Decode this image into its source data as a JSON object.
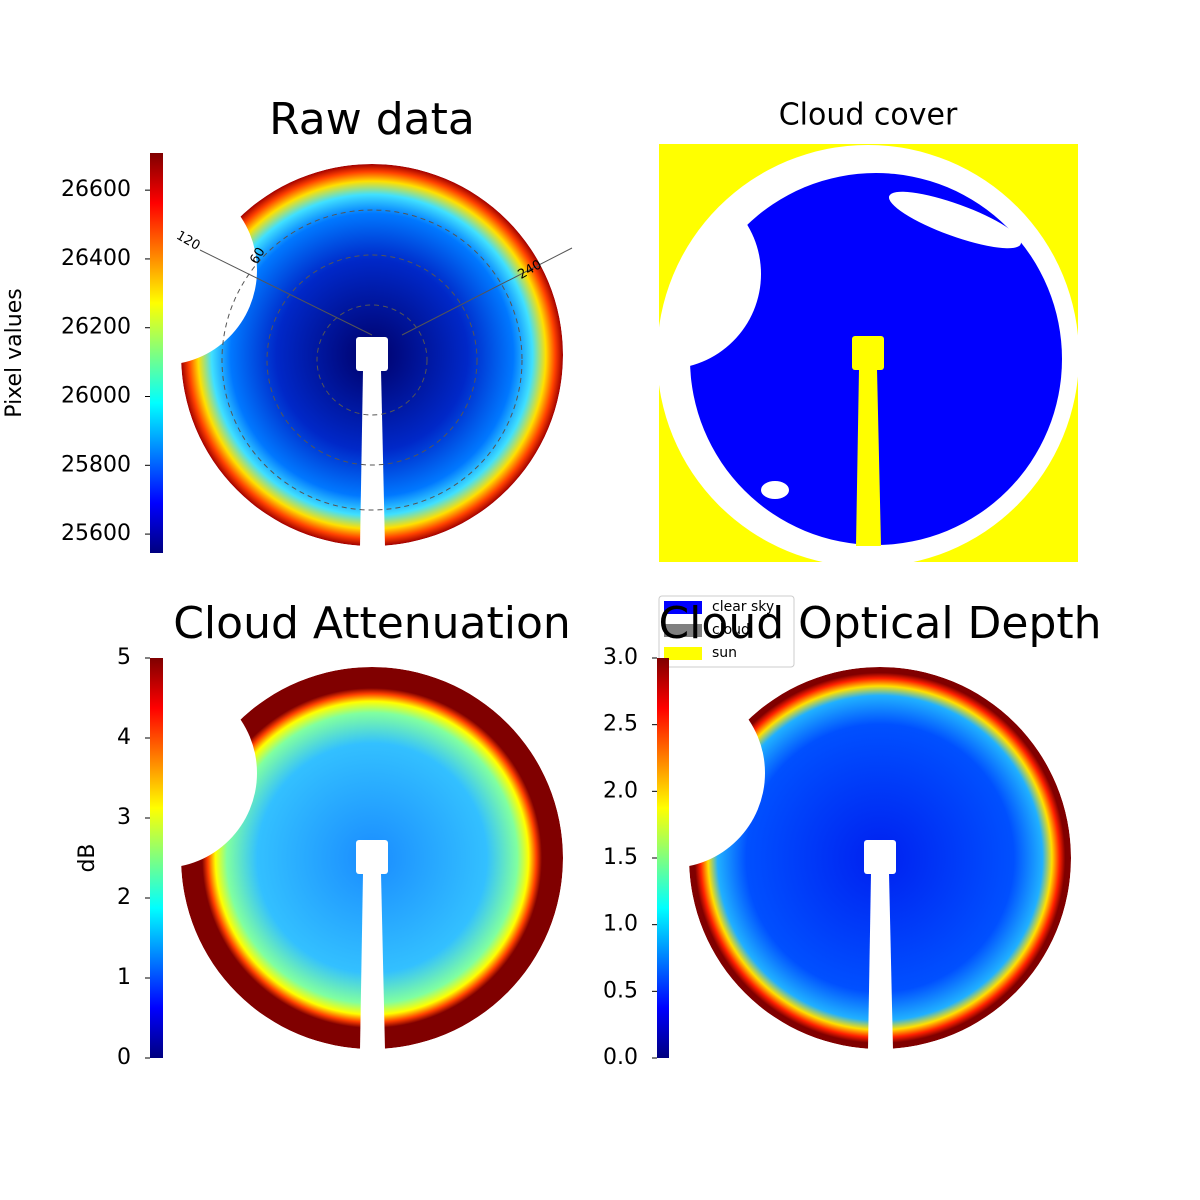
{
  "chart_data": [
    {
      "type": "skyimage",
      "title": "Raw data",
      "colormap": "jet",
      "colorbar": {
        "label": "Pixel values",
        "lim": [
          25545,
          26708
        ],
        "ticks": [
          25600,
          25800,
          26000,
          26200,
          26400,
          26600
        ]
      },
      "annotations": [
        "120",
        "60",
        "240"
      ]
    },
    {
      "type": "classmap",
      "title": "Cloud cover",
      "legend_entries": [
        {
          "name": "clear sky",
          "color": "#0000ff"
        },
        {
          "name": "cloud",
          "color": "#808080"
        },
        {
          "name": "sun",
          "color": "#ffff00"
        }
      ]
    },
    {
      "type": "skyimage",
      "title": "Cloud Attenuation",
      "colormap": "jet",
      "colorbar": {
        "label": "dB",
        "lim": [
          0,
          5
        ],
        "ticks": [
          0,
          1,
          2,
          3,
          4,
          5
        ]
      }
    },
    {
      "type": "skyimage",
      "title": "Cloud Optical Depth",
      "colormap": "jet",
      "colorbar": {
        "lim": [
          0,
          3
        ],
        "ticks": [
          {
            "value": 0,
            "label": "0.0"
          },
          0.5,
          {
            "value": 1,
            "label": "1.0"
          },
          1.5,
          {
            "value": 2,
            "label": "2.0"
          },
          2.5,
          {
            "value": 3,
            "label": "3.0"
          }
        ]
      }
    }
  ]
}
